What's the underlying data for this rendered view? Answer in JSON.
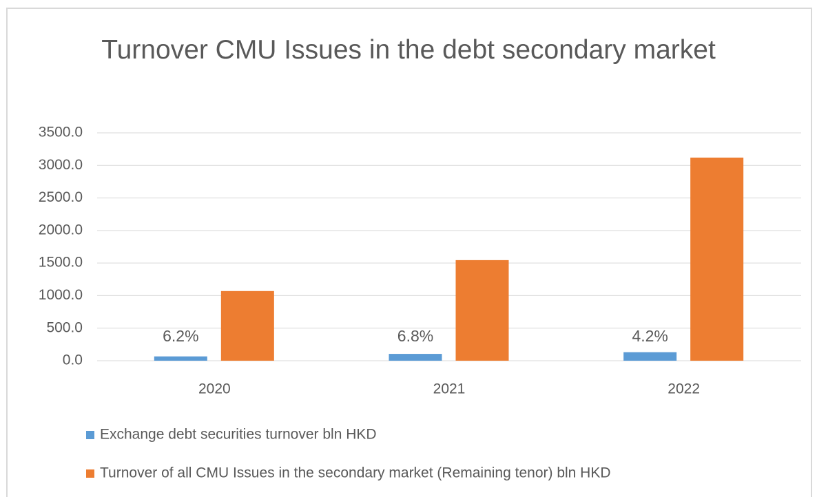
{
  "chart_data": {
    "type": "bar",
    "title": "Turnover CMU Issues in the debt secondary market",
    "categories": [
      "2020",
      "2021",
      "2022"
    ],
    "series": [
      {
        "name": "Exchange debt securities turnover bln HKD",
        "color": "#5b9bd5",
        "values": [
          66,
          105,
          131
        ]
      },
      {
        "name": "Turnover of all CMU Issues in the secondary market (Remaining tenor) bln HKD",
        "color": "#ed7d31",
        "values": [
          1070,
          1545,
          3120
        ]
      }
    ],
    "annotations": [
      "6.2%",
      "6.8%",
      "4.2%"
    ],
    "ylim": [
      0,
      3500
    ],
    "yticks": [
      {
        "value": 0,
        "label": "0.0"
      },
      {
        "value": 500,
        "label": "500.0"
      },
      {
        "value": 1000,
        "label": "1000.0"
      },
      {
        "value": 1500,
        "label": "1500.0"
      },
      {
        "value": 2000,
        "label": "2000.0"
      },
      {
        "value": 2500,
        "label": "2500.0"
      },
      {
        "value": 3000,
        "label": "3000.0"
      },
      {
        "value": 3500,
        "label": "3500.0"
      }
    ],
    "grid": true,
    "legend": "bottom"
  }
}
